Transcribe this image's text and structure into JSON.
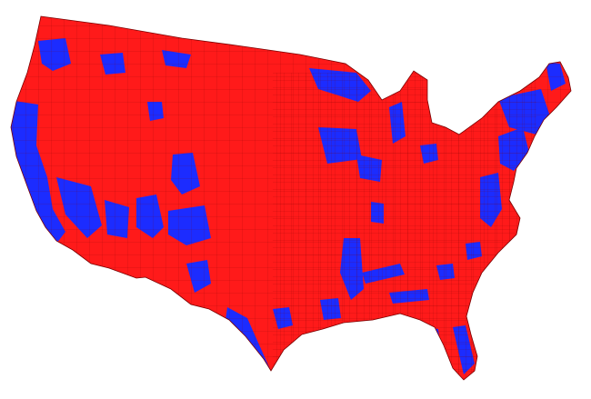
{
  "map": {
    "colors": {
      "background": "#ffffff",
      "red": "#ff1a1a",
      "blue": "#1c2cff",
      "border": "#7a0000"
    },
    "legend": []
  }
}
